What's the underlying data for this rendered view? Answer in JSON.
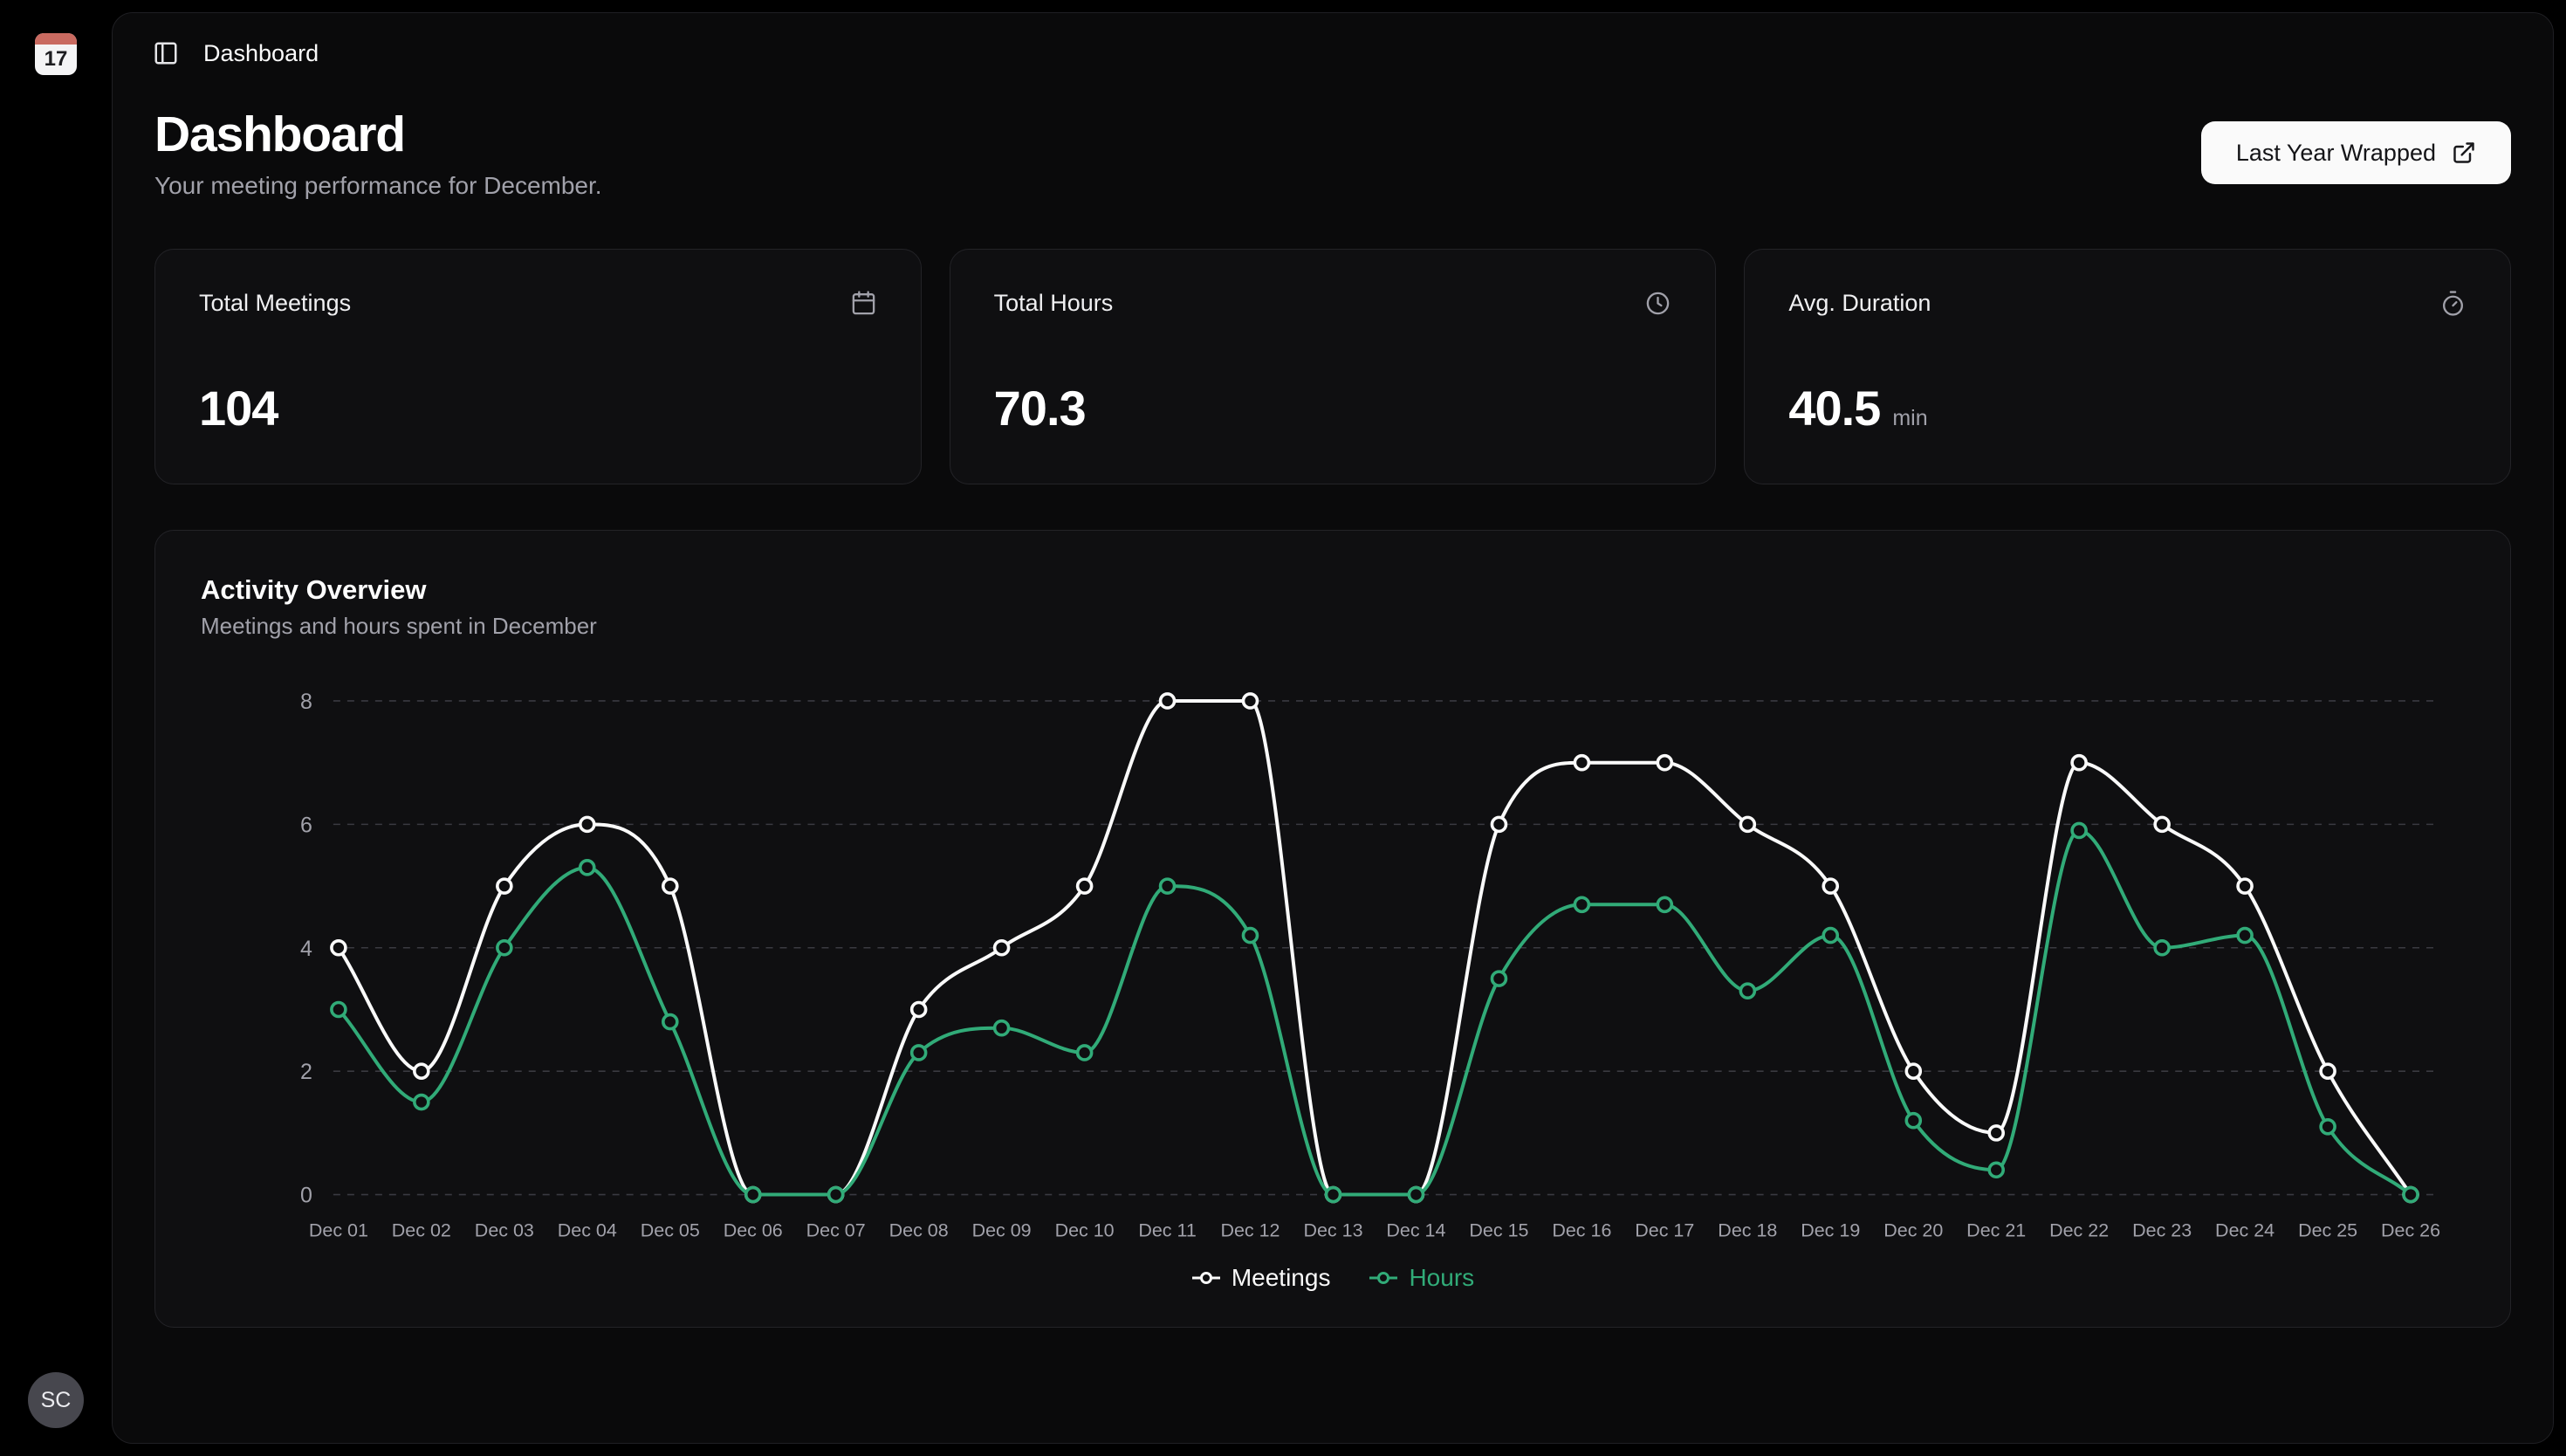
{
  "app": {
    "topbar_title": "Dashboard"
  },
  "sidebar": {
    "calendar_day": "17",
    "avatar_initials": "SC"
  },
  "header": {
    "title": "Dashboard",
    "subtitle": "Your meeting performance for December.",
    "wrapped_button_label": "Last Year Wrapped"
  },
  "stats": {
    "cards": [
      {
        "label": "Total Meetings",
        "value": "104",
        "suffix": "",
        "icon": "calendar-icon"
      },
      {
        "label": "Total Hours",
        "value": "70.3",
        "suffix": "",
        "icon": "clock-icon"
      },
      {
        "label": "Avg. Duration",
        "value": "40.5",
        "suffix": "min",
        "icon": "timer-icon"
      }
    ]
  },
  "activity": {
    "title": "Activity Overview",
    "subtitle": "Meetings and hours spent in December"
  },
  "chart_data": {
    "type": "line",
    "title": "Activity Overview",
    "categories": [
      "Dec 01",
      "Dec 02",
      "Dec 03",
      "Dec 04",
      "Dec 05",
      "Dec 06",
      "Dec 07",
      "Dec 08",
      "Dec 09",
      "Dec 10",
      "Dec 11",
      "Dec 12",
      "Dec 13",
      "Dec 14",
      "Dec 15",
      "Dec 16",
      "Dec 17",
      "Dec 18",
      "Dec 19",
      "Dec 20",
      "Dec 21",
      "Dec 22",
      "Dec 23",
      "Dec 24",
      "Dec 25",
      "Dec 26"
    ],
    "series": [
      {
        "name": "Meetings",
        "color": "#fafafa",
        "values": [
          4,
          2,
          5,
          6,
          5,
          0,
          0,
          3,
          4,
          5,
          8,
          8,
          0,
          0,
          6,
          7,
          7,
          6,
          5,
          2,
          1,
          7,
          6,
          5,
          2,
          0
        ]
      },
      {
        "name": "Hours",
        "color": "#31ab78",
        "values": [
          3,
          1.5,
          4,
          5.3,
          2.8,
          0,
          0,
          2.3,
          2.7,
          2.3,
          5,
          4.2,
          0,
          0,
          3.5,
          4.7,
          4.7,
          3.3,
          4.2,
          1.2,
          0.4,
          5.9,
          4,
          4.2,
          1.1,
          0
        ]
      }
    ],
    "ylim": [
      0,
      8
    ],
    "yticks": [
      0,
      2,
      4,
      6,
      8
    ],
    "grid": "dashed-horizontal",
    "legend_position": "bottom"
  }
}
